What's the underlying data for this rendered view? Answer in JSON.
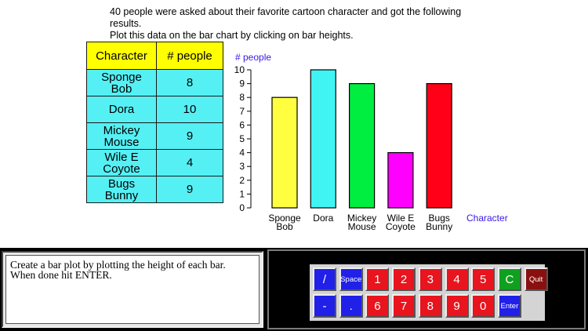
{
  "instructions": {
    "line1": "40 people were asked about their favorite cartoon character and got the following results.",
    "line2": "Plot this data on the bar chart by clicking on bar heights."
  },
  "table": {
    "headers": [
      "Character",
      "# people"
    ],
    "rows": [
      {
        "name": "Sponge Bob",
        "count": "8"
      },
      {
        "name": "Dora",
        "count": "10"
      },
      {
        "name": "Mickey Mouse",
        "count": "9"
      },
      {
        "name": "Wile E Coyote",
        "count": "4"
      },
      {
        "name": "Bugs Bunny",
        "count": "9"
      }
    ]
  },
  "chart_data": {
    "type": "bar",
    "ylabel": "# people",
    "xlabel": "Character",
    "categories": [
      "Sponge Bob",
      "Dora",
      "Mickey Mouse",
      "Wile E Coyote",
      "Bugs Bunny"
    ],
    "values": [
      8,
      10,
      9,
      4,
      9
    ],
    "colors": [
      "#ffff40",
      "#40f4f4",
      "#00ee40",
      "#ff00ff",
      "#ff0018"
    ],
    "ylim": [
      0,
      10
    ],
    "yticks": [
      0,
      1,
      2,
      3,
      4,
      5,
      6,
      7,
      8,
      9,
      10
    ],
    "grid": false
  },
  "prompt": {
    "line1": "Create a bar plot by plotting the height of each bar.",
    "line2": "When done hit ENTER."
  },
  "keyboard": {
    "row1": [
      {
        "label": "/",
        "color": "blue",
        "name": "slash-key"
      },
      {
        "label": "Space",
        "color": "blue",
        "name": "space-key",
        "small": true
      },
      {
        "label": "1",
        "color": "red",
        "name": "key-1"
      },
      {
        "label": "2",
        "color": "red",
        "name": "key-2"
      },
      {
        "label": "3",
        "color": "red",
        "name": "key-3"
      },
      {
        "label": "4",
        "color": "red",
        "name": "key-4"
      },
      {
        "label": "5",
        "color": "red",
        "name": "key-5"
      },
      {
        "label": "C",
        "color": "green",
        "name": "clear-key"
      },
      {
        "label": "Quit",
        "color": "maroon",
        "name": "quit-key",
        "small": true
      }
    ],
    "row2": [
      {
        "label": "-",
        "color": "blue",
        "name": "minus-key"
      },
      {
        "label": ".",
        "color": "blue",
        "name": "decimal-key"
      },
      {
        "label": "6",
        "color": "red",
        "name": "key-6"
      },
      {
        "label": "7",
        "color": "red",
        "name": "key-7"
      },
      {
        "label": "8",
        "color": "red",
        "name": "key-8"
      },
      {
        "label": "9",
        "color": "red",
        "name": "key-9"
      },
      {
        "label": "0",
        "color": "red",
        "name": "key-0"
      },
      {
        "label": "Enter",
        "color": "blue",
        "name": "enter-key",
        "small": true
      }
    ]
  }
}
